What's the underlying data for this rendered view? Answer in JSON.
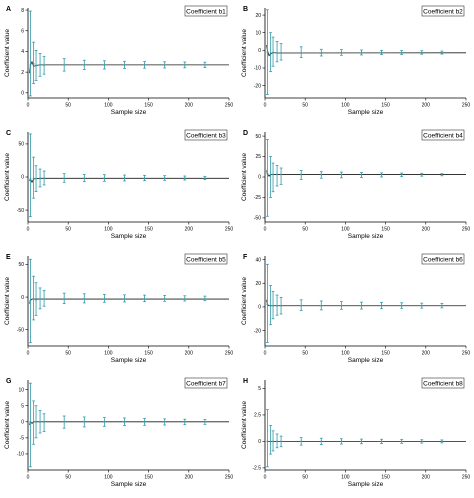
{
  "chart_data": [
    {
      "type": "scatter",
      "panel": "A",
      "legend": "Coefficient b1",
      "xlabel": "Sample size",
      "ylabel": "Coefficient value",
      "xlim": [
        0,
        250
      ],
      "xticks": [
        0,
        50,
        100,
        150,
        200,
        250
      ],
      "ylim": [
        -0.5,
        8.2
      ],
      "yticks": [
        0,
        2,
        4,
        6,
        8
      ],
      "points": [
        {
          "x": 3,
          "y": 2.7,
          "lo": -0.3,
          "hi": 7.9
        },
        {
          "x": 7,
          "y": 2.8,
          "lo": 0.9,
          "hi": 4.9
        },
        {
          "x": 10,
          "y": 2.65,
          "lo": 1.2,
          "hi": 4.1
        },
        {
          "x": 15,
          "y": 2.7,
          "lo": 1.6,
          "hi": 3.8
        },
        {
          "x": 20,
          "y": 2.68,
          "lo": 1.8,
          "hi": 3.5
        },
        {
          "x": 45,
          "y": 2.7,
          "lo": 2.1,
          "hi": 3.3
        },
        {
          "x": 70,
          "y": 2.7,
          "lo": 2.25,
          "hi": 3.15
        },
        {
          "x": 95,
          "y": 2.7,
          "lo": 2.3,
          "hi": 3.1
        },
        {
          "x": 120,
          "y": 2.7,
          "lo": 2.35,
          "hi": 3.05
        },
        {
          "x": 145,
          "y": 2.7,
          "lo": 2.38,
          "hi": 3.02
        },
        {
          "x": 170,
          "y": 2.7,
          "lo": 2.4,
          "hi": 3.0
        },
        {
          "x": 195,
          "y": 2.7,
          "lo": 2.42,
          "hi": 2.98
        },
        {
          "x": 220,
          "y": 2.7,
          "lo": 2.44,
          "hi": 2.96
        }
      ],
      "curve": [
        [
          2,
          1.9
        ],
        [
          3,
          2.7
        ],
        [
          5,
          3.0
        ],
        [
          7,
          2.55
        ],
        [
          10,
          2.65
        ],
        [
          15,
          2.7
        ],
        [
          250,
          2.7
        ]
      ]
    },
    {
      "type": "scatter",
      "panel": "B",
      "legend": "Coefficient b2",
      "xlabel": "Sample size",
      "ylabel": "Coefficient value",
      "xlim": [
        0,
        250
      ],
      "xticks": [
        0,
        50,
        100,
        150,
        200,
        250
      ],
      "ylim": [
        -27,
        24
      ],
      "yticks": [
        -20,
        -10,
        0,
        10,
        20
      ],
      "points": [
        {
          "x": 3,
          "y": -1.0,
          "lo": -25.0,
          "hi": 23.0
        },
        {
          "x": 7,
          "y": -1.5,
          "lo": -12.0,
          "hi": 10.0
        },
        {
          "x": 10,
          "y": -1.2,
          "lo": -9.0,
          "hi": 7.5
        },
        {
          "x": 15,
          "y": -1.5,
          "lo": -6.5,
          "hi": 5.0
        },
        {
          "x": 20,
          "y": -1.4,
          "lo": -5.5,
          "hi": 3.8
        },
        {
          "x": 45,
          "y": -1.4,
          "lo": -4.0,
          "hi": 2.0
        },
        {
          "x": 70,
          "y": -1.6,
          "lo": -3.2,
          "hi": 0.6
        },
        {
          "x": 95,
          "y": -1.4,
          "lo": -2.8,
          "hi": 0.4
        },
        {
          "x": 120,
          "y": -1.4,
          "lo": -2.6,
          "hi": 0.2
        },
        {
          "x": 145,
          "y": -1.4,
          "lo": -2.4,
          "hi": 0.0
        },
        {
          "x": 170,
          "y": -1.4,
          "lo": -2.3,
          "hi": -0.1
        },
        {
          "x": 195,
          "y": -1.4,
          "lo": -2.2,
          "hi": -0.2
        },
        {
          "x": 220,
          "y": -1.4,
          "lo": -2.1,
          "hi": -0.4
        }
      ],
      "curve": [
        [
          2,
          3.0
        ],
        [
          3,
          0.0
        ],
        [
          5,
          -3.0
        ],
        [
          7,
          -2.0
        ],
        [
          10,
          -1.3
        ],
        [
          15,
          -1.5
        ],
        [
          250,
          -1.4
        ]
      ]
    },
    {
      "type": "scatter",
      "panel": "C",
      "legend": "Coefficient b3",
      "xlabel": "Sample size",
      "ylabel": "Coefficient value",
      "xlim": [
        0,
        250
      ],
      "xticks": [
        0,
        50,
        100,
        150,
        200,
        250
      ],
      "ylim": [
        -68,
        68
      ],
      "yticks": [
        -50,
        0,
        50
      ],
      "points": [
        {
          "x": 3,
          "y": -3.0,
          "lo": -60.0,
          "hi": 65.0
        },
        {
          "x": 7,
          "y": -2.0,
          "lo": -32.0,
          "hi": 30.0
        },
        {
          "x": 10,
          "y": -2.5,
          "lo": -22.0,
          "hi": 17.0
        },
        {
          "x": 15,
          "y": -2.0,
          "lo": -15.0,
          "hi": 12.0
        },
        {
          "x": 20,
          "y": -2.0,
          "lo": -12.0,
          "hi": 9.0
        },
        {
          "x": 45,
          "y": -2.0,
          "lo": -8.0,
          "hi": 5.0
        },
        {
          "x": 70,
          "y": -2.0,
          "lo": -7.0,
          "hi": 4.0
        },
        {
          "x": 95,
          "y": -2.0,
          "lo": -6.5,
          "hi": 3.5
        },
        {
          "x": 120,
          "y": -2.0,
          "lo": -6.0,
          "hi": 3.0
        },
        {
          "x": 145,
          "y": -2.0,
          "lo": -5.5,
          "hi": 2.5
        },
        {
          "x": 170,
          "y": -2.0,
          "lo": -5.0,
          "hi": 2.0
        },
        {
          "x": 195,
          "y": -2.0,
          "lo": -4.5,
          "hi": 1.5
        },
        {
          "x": 220,
          "y": -2.0,
          "lo": -4.0,
          "hi": 1.0
        }
      ],
      "curve": [
        [
          2,
          -6.0
        ],
        [
          3,
          -3.0
        ],
        [
          5,
          -8.0
        ],
        [
          7,
          -3.0
        ],
        [
          10,
          -2.5
        ],
        [
          15,
          -2.0
        ],
        [
          250,
          -2.0
        ]
      ]
    },
    {
      "type": "scatter",
      "panel": "D",
      "legend": "Coefficient b4",
      "xlabel": "Sample size",
      "ylabel": "Coefficient value",
      "xlim": [
        0,
        250
      ],
      "xticks": [
        0,
        50,
        100,
        150,
        200,
        250
      ],
      "ylim": [
        -55,
        55
      ],
      "yticks": [
        -50,
        -25,
        0,
        25,
        50
      ],
      "points": [
        {
          "x": 3,
          "y": 4.0,
          "lo": -48.0,
          "hi": 46.0
        },
        {
          "x": 7,
          "y": 3.0,
          "lo": -25.0,
          "hi": 25.0
        },
        {
          "x": 10,
          "y": 3.0,
          "lo": -18.0,
          "hi": 17.0
        },
        {
          "x": 15,
          "y": 3.0,
          "lo": -11.0,
          "hi": 14.0
        },
        {
          "x": 20,
          "y": 3.0,
          "lo": -9.0,
          "hi": 11.0
        },
        {
          "x": 45,
          "y": 3.0,
          "lo": -3.0,
          "hi": 8.0
        },
        {
          "x": 70,
          "y": 3.0,
          "lo": -1.5,
          "hi": 6.5
        },
        {
          "x": 95,
          "y": 3.0,
          "lo": -1.0,
          "hi": 6.0
        },
        {
          "x": 120,
          "y": 3.0,
          "lo": -0.5,
          "hi": 5.5
        },
        {
          "x": 145,
          "y": 3.0,
          "lo": 0.0,
          "hi": 5.0
        },
        {
          "x": 170,
          "y": 3.0,
          "lo": 0.5,
          "hi": 4.8
        },
        {
          "x": 195,
          "y": 3.0,
          "lo": 1.0,
          "hi": 4.5
        },
        {
          "x": 220,
          "y": 3.0,
          "lo": 1.5,
          "hi": 4.2
        }
      ],
      "curve": [
        [
          2,
          8.0
        ],
        [
          3,
          4.0
        ],
        [
          5,
          1.0
        ],
        [
          7,
          3.0
        ],
        [
          10,
          3.0
        ],
        [
          250,
          3.0
        ]
      ]
    },
    {
      "type": "scatter",
      "panel": "E",
      "legend": "Coefficient b5",
      "xlabel": "Sample size",
      "ylabel": "Coefficient value",
      "xlim": [
        0,
        250
      ],
      "xticks": [
        0,
        50,
        100,
        150,
        200,
        250
      ],
      "ylim": [
        -75,
        63
      ],
      "yticks": [
        -50,
        0,
        50
      ],
      "points": [
        {
          "x": 3,
          "y": -5.0,
          "lo": -70.0,
          "hi": 58.0
        },
        {
          "x": 7,
          "y": -3.0,
          "lo": -35.0,
          "hi": 32.0
        },
        {
          "x": 10,
          "y": -4.0,
          "lo": -28.0,
          "hi": 22.0
        },
        {
          "x": 15,
          "y": -3.0,
          "lo": -18.0,
          "hi": 14.0
        },
        {
          "x": 20,
          "y": -3.0,
          "lo": -14.0,
          "hi": 10.0
        },
        {
          "x": 45,
          "y": -3.0,
          "lo": -10.0,
          "hi": 6.0
        },
        {
          "x": 70,
          "y": -3.0,
          "lo": -9.0,
          "hi": 5.0
        },
        {
          "x": 95,
          "y": -3.0,
          "lo": -8.0,
          "hi": 4.0
        },
        {
          "x": 120,
          "y": -3.0,
          "lo": -7.5,
          "hi": 3.5
        },
        {
          "x": 145,
          "y": -3.0,
          "lo": -7.0,
          "hi": 3.0
        },
        {
          "x": 170,
          "y": -3.0,
          "lo": -6.5,
          "hi": 2.5
        },
        {
          "x": 195,
          "y": -3.0,
          "lo": -6.0,
          "hi": 2.0
        },
        {
          "x": 220,
          "y": -3.0,
          "lo": -5.5,
          "hi": 1.5
        }
      ],
      "curve": [
        [
          2,
          -10.0
        ],
        [
          3,
          -5.0
        ],
        [
          5,
          -3.0
        ],
        [
          7,
          -3.0
        ],
        [
          250,
          -3.0
        ]
      ]
    },
    {
      "type": "scatter",
      "panel": "F",
      "legend": "Coefficient b6",
      "xlabel": "Sample size",
      "ylabel": "Coefficient value",
      "xlim": [
        0,
        250
      ],
      "xticks": [
        0,
        50,
        100,
        150,
        200,
        250
      ],
      "ylim": [
        -33,
        43
      ],
      "yticks": [
        -20,
        0,
        20,
        40
      ],
      "points": [
        {
          "x": 3,
          "y": 2.0,
          "lo": -30.0,
          "hi": 36.0
        },
        {
          "x": 7,
          "y": 1.0,
          "lo": -15.0,
          "hi": 18.0
        },
        {
          "x": 10,
          "y": 1.0,
          "lo": -10.0,
          "hi": 13.0
        },
        {
          "x": 15,
          "y": 1.0,
          "lo": -7.0,
          "hi": 10.0
        },
        {
          "x": 20,
          "y": 1.0,
          "lo": -6.0,
          "hi": 8.0
        },
        {
          "x": 45,
          "y": 1.0,
          "lo": -3.0,
          "hi": 6.0
        },
        {
          "x": 70,
          "y": 1.0,
          "lo": -2.5,
          "hi": 5.0
        },
        {
          "x": 95,
          "y": 1.0,
          "lo": -2.0,
          "hi": 4.5
        },
        {
          "x": 120,
          "y": 1.0,
          "lo": -1.8,
          "hi": 4.0
        },
        {
          "x": 145,
          "y": 1.0,
          "lo": -1.5,
          "hi": 3.8
        },
        {
          "x": 170,
          "y": 1.0,
          "lo": -1.2,
          "hi": 3.5
        },
        {
          "x": 195,
          "y": 1.0,
          "lo": -1.0,
          "hi": 3.2
        },
        {
          "x": 220,
          "y": 1.0,
          "lo": -0.8,
          "hi": 3.0
        }
      ],
      "curve": [
        [
          2,
          6.0
        ],
        [
          3,
          2.0
        ],
        [
          5,
          1.0
        ],
        [
          250,
          1.0
        ]
      ]
    },
    {
      "type": "scatter",
      "panel": "G",
      "legend": "Coefficient b7",
      "xlabel": "Sample size",
      "ylabel": "Coefficient value",
      "xlim": [
        0,
        250
      ],
      "xticks": [
        0,
        50,
        100,
        150,
        200,
        250
      ],
      "ylim": [
        -15,
        13
      ],
      "yticks": [
        -10,
        -5,
        0,
        5,
        10
      ],
      "points": [
        {
          "x": 3,
          "y": 0.0,
          "lo": -14.0,
          "hi": 12.0
        },
        {
          "x": 7,
          "y": 0.0,
          "lo": -7.0,
          "hi": 6.5
        },
        {
          "x": 10,
          "y": 0.0,
          "lo": -5.0,
          "hi": 5.0
        },
        {
          "x": 15,
          "y": 0.0,
          "lo": -3.5,
          "hi": 3.5
        },
        {
          "x": 20,
          "y": 0.0,
          "lo": -3.0,
          "hi": 2.5
        },
        {
          "x": 45,
          "y": 0.0,
          "lo": -2.0,
          "hi": 1.8
        },
        {
          "x": 70,
          "y": 0.0,
          "lo": -1.6,
          "hi": 1.5
        },
        {
          "x": 95,
          "y": 0.0,
          "lo": -1.4,
          "hi": 1.3
        },
        {
          "x": 120,
          "y": 0.0,
          "lo": -1.2,
          "hi": 1.2
        },
        {
          "x": 145,
          "y": 0.0,
          "lo": -1.1,
          "hi": 1.0
        },
        {
          "x": 170,
          "y": 0.0,
          "lo": -1.0,
          "hi": 0.9
        },
        {
          "x": 195,
          "y": 0.0,
          "lo": -0.9,
          "hi": 0.8
        },
        {
          "x": 220,
          "y": 0.0,
          "lo": -0.8,
          "hi": 0.7
        }
      ],
      "curve": [
        [
          2,
          -1.0
        ],
        [
          3,
          0.0
        ],
        [
          5,
          -0.5
        ],
        [
          7,
          0.0
        ],
        [
          250,
          0.0
        ]
      ]
    },
    {
      "type": "scatter",
      "panel": "H",
      "legend": "Coefficient b8",
      "xlabel": "Sample size",
      "ylabel": "Coefficient value",
      "xlim": [
        0,
        250
      ],
      "xticks": [
        0,
        50,
        100,
        150,
        200,
        250
      ],
      "ylim": [
        -2.7,
        5.8
      ],
      "yticks": [
        -2.5,
        0.0,
        2.5,
        5.0
      ],
      "points": [
        {
          "x": 3,
          "y": 0.0,
          "lo": -2.4,
          "hi": 3.0
        },
        {
          "x": 7,
          "y": 0.0,
          "lo": -1.2,
          "hi": 1.5
        },
        {
          "x": 10,
          "y": 0.0,
          "lo": -0.9,
          "hi": 1.0
        },
        {
          "x": 15,
          "y": 0.0,
          "lo": -0.6,
          "hi": 0.7
        },
        {
          "x": 20,
          "y": 0.0,
          "lo": -0.5,
          "hi": 0.5
        },
        {
          "x": 45,
          "y": 0.0,
          "lo": -0.35,
          "hi": 0.35
        },
        {
          "x": 70,
          "y": 0.0,
          "lo": -0.3,
          "hi": 0.3
        },
        {
          "x": 95,
          "y": 0.0,
          "lo": -0.25,
          "hi": 0.25
        },
        {
          "x": 120,
          "y": 0.0,
          "lo": -0.22,
          "hi": 0.22
        },
        {
          "x": 145,
          "y": 0.0,
          "lo": -0.2,
          "hi": 0.2
        },
        {
          "x": 170,
          "y": 0.0,
          "lo": -0.18,
          "hi": 0.18
        },
        {
          "x": 195,
          "y": 0.0,
          "lo": -0.16,
          "hi": 0.16
        },
        {
          "x": 220,
          "y": 0.0,
          "lo": -0.14,
          "hi": 0.14
        }
      ],
      "curve": [
        [
          2,
          0.0
        ],
        [
          250,
          0.0
        ]
      ]
    }
  ],
  "colors": {
    "errorbar": "#2e9aa8",
    "curve": "#1a1a1a",
    "axis": "#000000"
  }
}
